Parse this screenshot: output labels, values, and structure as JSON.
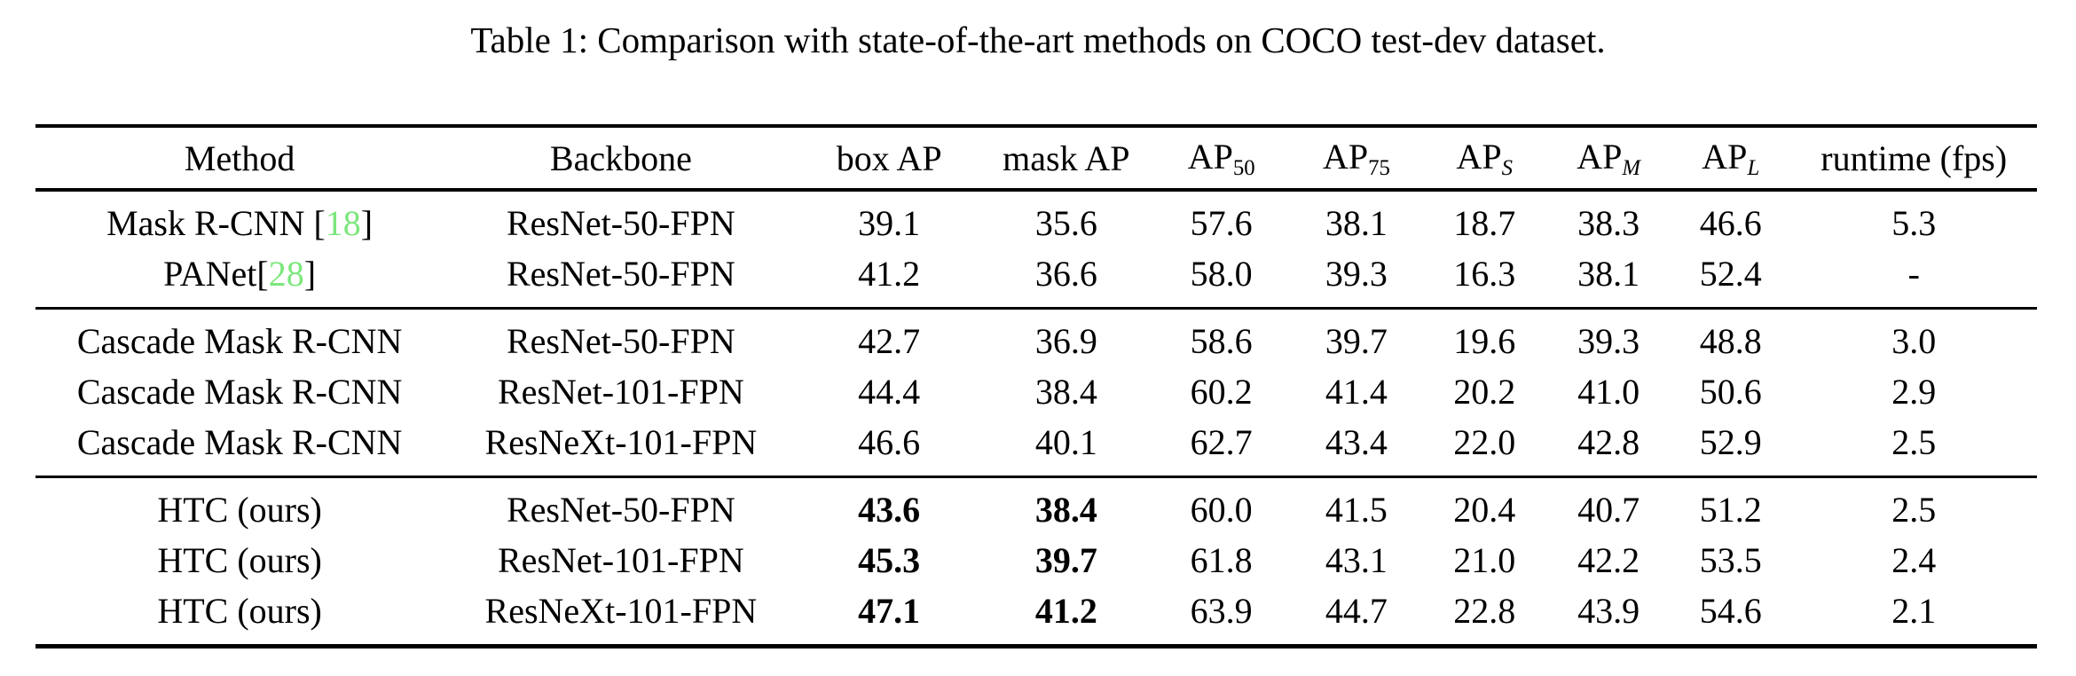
{
  "caption": "Table 1: Comparison with state-of-the-art methods on COCO test-dev dataset.",
  "colors": {
    "citation_green": "#7BE77B",
    "text": "#000000",
    "background": "#FFFFFF",
    "rule": "#000000"
  },
  "table": {
    "columns": [
      {
        "label": "Method"
      },
      {
        "label": "Backbone"
      },
      {
        "label": "box AP"
      },
      {
        "label": "mask AP"
      },
      {
        "base": "AP",
        "sub": "50"
      },
      {
        "base": "AP",
        "sub": "75"
      },
      {
        "base": "AP",
        "sub": "S"
      },
      {
        "base": "AP",
        "sub": "M"
      },
      {
        "base": "AP",
        "sub": "L"
      },
      {
        "label": "runtime (fps)"
      }
    ],
    "groups": [
      {
        "rows": [
          {
            "method": {
              "text": "Mask R-CNN ",
              "open": "[",
              "cite": "18",
              "close": "]"
            },
            "backbone": "ResNet-50-FPN",
            "box_ap": "39.1",
            "mask_ap": "35.6",
            "ap50": "57.6",
            "ap75": "38.1",
            "ap_s": "18.7",
            "ap_m": "38.3",
            "ap_l": "46.6",
            "runtime": "5.3"
          },
          {
            "method": {
              "text": "PANet",
              "open": "[",
              "cite": "28",
              "close": "]"
            },
            "backbone": "ResNet-50-FPN",
            "box_ap": "41.2",
            "mask_ap": "36.6",
            "ap50": "58.0",
            "ap75": "39.3",
            "ap_s": "16.3",
            "ap_m": "38.1",
            "ap_l": "52.4",
            "runtime": "-"
          }
        ]
      },
      {
        "rows": [
          {
            "method": {
              "text": "Cascade Mask R-CNN"
            },
            "backbone": "ResNet-50-FPN",
            "box_ap": "42.7",
            "mask_ap": "36.9",
            "ap50": "58.6",
            "ap75": "39.7",
            "ap_s": "19.6",
            "ap_m": "39.3",
            "ap_l": "48.8",
            "runtime": "3.0"
          },
          {
            "method": {
              "text": "Cascade Mask R-CNN"
            },
            "backbone": "ResNet-101-FPN",
            "box_ap": "44.4",
            "mask_ap": "38.4",
            "ap50": "60.2",
            "ap75": "41.4",
            "ap_s": "20.2",
            "ap_m": "41.0",
            "ap_l": "50.6",
            "runtime": "2.9"
          },
          {
            "method": {
              "text": "Cascade Mask R-CNN"
            },
            "backbone": "ResNeXt-101-FPN",
            "box_ap": "46.6",
            "mask_ap": "40.1",
            "ap50": "62.7",
            "ap75": "43.4",
            "ap_s": "22.0",
            "ap_m": "42.8",
            "ap_l": "52.9",
            "runtime": "2.5"
          }
        ]
      },
      {
        "rows": [
          {
            "method": {
              "text": "HTC (ours)"
            },
            "backbone": "ResNet-50-FPN",
            "box_ap": "43.6",
            "mask_ap": "38.4",
            "ap50": "60.0",
            "ap75": "41.5",
            "ap_s": "20.4",
            "ap_m": "40.7",
            "ap_l": "51.2",
            "runtime": "2.5"
          },
          {
            "method": {
              "text": "HTC (ours)"
            },
            "backbone": "ResNet-101-FPN",
            "box_ap": "45.3",
            "mask_ap": "39.7",
            "ap50": "61.8",
            "ap75": "43.1",
            "ap_s": "21.0",
            "ap_m": "42.2",
            "ap_l": "53.5",
            "runtime": "2.4"
          },
          {
            "method": {
              "text": "HTC (ours)"
            },
            "backbone": "ResNeXt-101-FPN",
            "box_ap": "47.1",
            "mask_ap": "41.2",
            "ap50": "63.9",
            "ap75": "44.7",
            "ap_s": "22.8",
            "ap_m": "43.9",
            "ap_l": "54.6",
            "runtime": "2.1"
          }
        ]
      }
    ]
  }
}
